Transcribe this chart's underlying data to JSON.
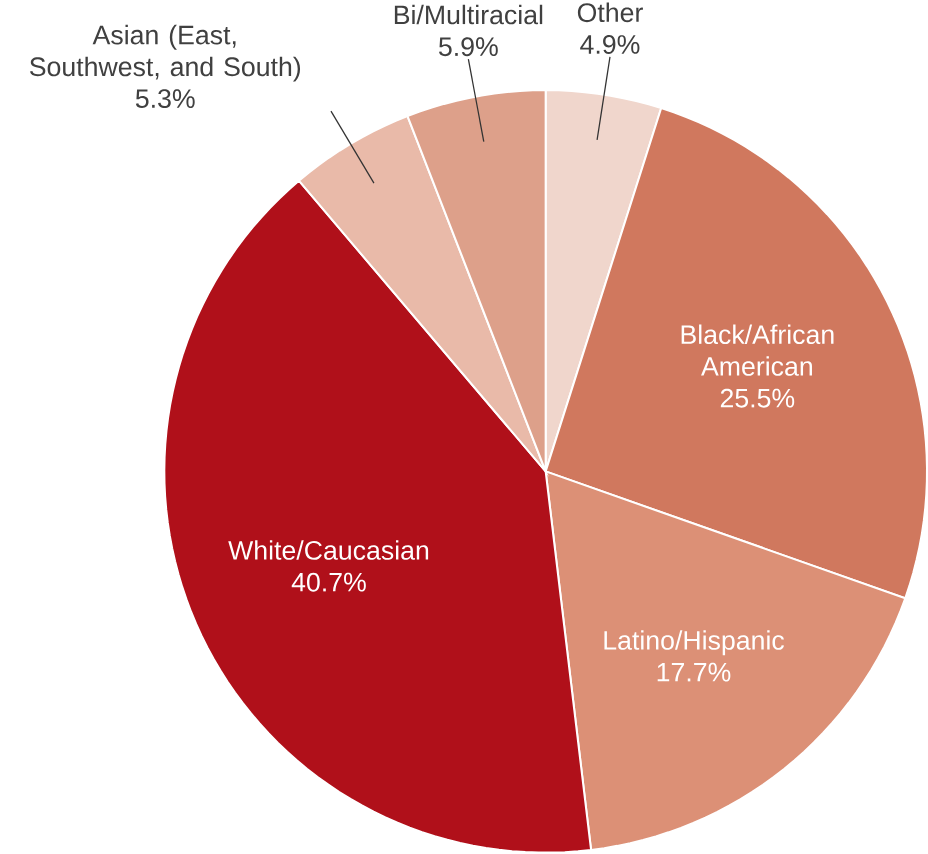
{
  "chart_data": {
    "type": "pie",
    "categories": [
      "Other",
      "Black/African American",
      "Latino/Hispanic",
      "White/Caucasian",
      "Asian (East, Southwest, and South)",
      "Bi/Multiracial"
    ],
    "values": [
      4.9,
      25.5,
      17.7,
      40.7,
      5.3,
      5.9
    ],
    "value_labels": [
      "4.9%",
      "25.5%",
      "17.7%",
      "40.7%",
      "5.3%",
      "5.9%"
    ],
    "colors": [
      "#f0d6cc",
      "#d0785e",
      "#dc9076",
      "#b0101a",
      "#e9baa9",
      "#dda08a"
    ]
  }
}
